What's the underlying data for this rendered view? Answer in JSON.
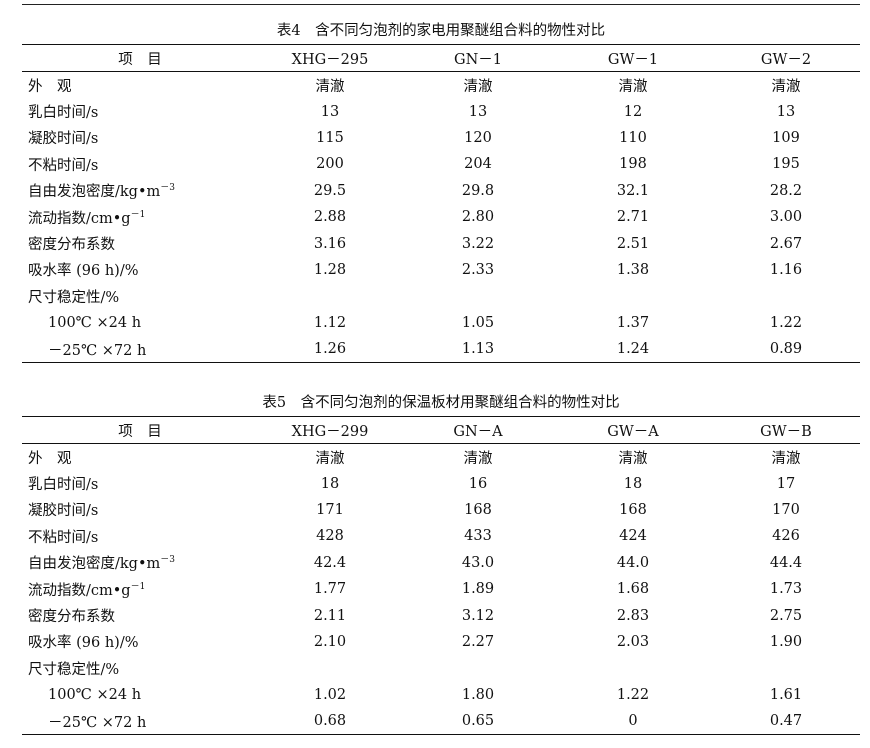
{
  "tables": [
    {
      "caption": "表4　含不同匀泡剂的家电用聚醚组合料的物性对比",
      "headers": [
        "项　目",
        "XHG－295",
        "GN－1",
        "GW－1",
        "GW－2"
      ],
      "rows": [
        {
          "label": "外　观",
          "sup": "",
          "values": [
            "清澈",
            "清澈",
            "清澈",
            "清澈"
          ]
        },
        {
          "label": "乳白时间/s",
          "sup": "",
          "values": [
            "13",
            "13",
            "12",
            "13"
          ]
        },
        {
          "label": "凝胶时间/s",
          "sup": "",
          "values": [
            "115",
            "120",
            "110",
            "109"
          ]
        },
        {
          "label": "不粘时间/s",
          "sup": "",
          "values": [
            "200",
            "204",
            "198",
            "195"
          ]
        },
        {
          "label": "自由发泡密度/kg•m",
          "sup": "－3",
          "values": [
            "29.5",
            "29.8",
            "32.1",
            "28.2"
          ]
        },
        {
          "label": "流动指数/cm•g",
          "sup": "－1",
          "values": [
            "2.88",
            "2.80",
            "2.71",
            "3.00"
          ]
        },
        {
          "label": "密度分布系数",
          "sup": "",
          "values": [
            "3.16",
            "3.22",
            "2.51",
            "2.67"
          ]
        },
        {
          "label": "吸水率 (96 h)/%",
          "sup": "",
          "values": [
            "1.28",
            "2.33",
            "1.38",
            "1.16"
          ]
        },
        {
          "label": "尺寸稳定性/%",
          "sup": "",
          "values": [
            "",
            "",
            "",
            ""
          ]
        },
        {
          "label": "100℃ ×24 h",
          "sup": "",
          "sub": true,
          "values": [
            "1.12",
            "1.05",
            "1.37",
            "1.22"
          ]
        },
        {
          "label": "－25℃ ×72 h",
          "sup": "",
          "sub": true,
          "values": [
            "1.26",
            "1.13",
            "1.24",
            "0.89"
          ]
        }
      ]
    },
    {
      "caption": "表5　含不同匀泡剂的保温板材用聚醚组合料的物性对比",
      "headers": [
        "项　目",
        "XHG－299",
        "GN－A",
        "GW－A",
        "GW－B"
      ],
      "rows": [
        {
          "label": "外　观",
          "sup": "",
          "values": [
            "清澈",
            "清澈",
            "清澈",
            "清澈"
          ]
        },
        {
          "label": "乳白时间/s",
          "sup": "",
          "values": [
            "18",
            "16",
            "18",
            "17"
          ]
        },
        {
          "label": "凝胶时间/s",
          "sup": "",
          "values": [
            "171",
            "168",
            "168",
            "170"
          ]
        },
        {
          "label": "不粘时间/s",
          "sup": "",
          "values": [
            "428",
            "433",
            "424",
            "426"
          ]
        },
        {
          "label": "自由发泡密度/kg•m",
          "sup": "－3",
          "values": [
            "42.4",
            "43.0",
            "44.0",
            "44.4"
          ]
        },
        {
          "label": "流动指数/cm•g",
          "sup": "－1",
          "values": [
            "1.77",
            "1.89",
            "1.68",
            "1.73"
          ]
        },
        {
          "label": "密度分布系数",
          "sup": "",
          "values": [
            "2.11",
            "3.12",
            "2.83",
            "2.75"
          ]
        },
        {
          "label": "吸水率 (96 h)/%",
          "sup": "",
          "values": [
            "2.10",
            "2.27",
            "2.03",
            "1.90"
          ]
        },
        {
          "label": "尺寸稳定性/%",
          "sup": "",
          "values": [
            "",
            "",
            "",
            ""
          ]
        },
        {
          "label": "100℃ ×24 h",
          "sup": "",
          "sub": true,
          "values": [
            "1.02",
            "1.80",
            "1.22",
            "1.61"
          ]
        },
        {
          "label": "－25℃ ×72 h",
          "sup": "",
          "sub": true,
          "values": [
            "0.68",
            "0.65",
            "0",
            "0.47"
          ]
        }
      ]
    }
  ]
}
